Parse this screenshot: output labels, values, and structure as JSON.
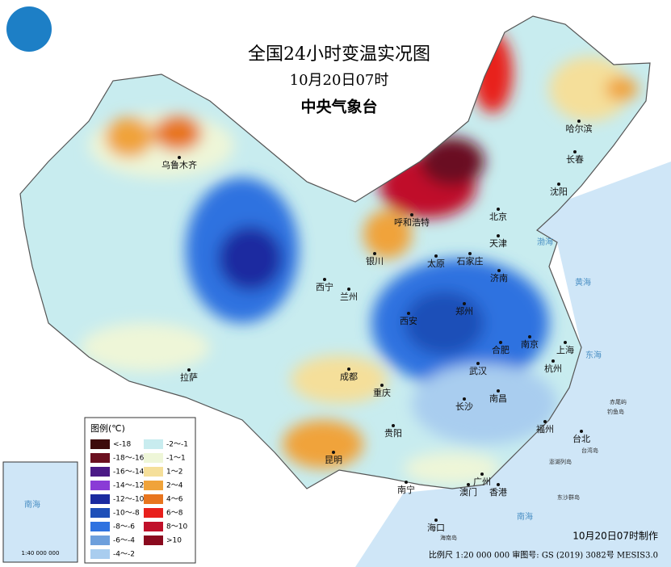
{
  "header": {
    "title": "全国24小时变温实况图",
    "time": "10月20日07时",
    "agency": "中央气象台"
  },
  "legend": {
    "title": "图例(℃)",
    "items": [
      {
        "label": "<-18",
        "color": "#3d0b0b"
      },
      {
        "label": "-18～-16",
        "color": "#6b1020"
      },
      {
        "label": "-16～-14",
        "color": "#4b1a86"
      },
      {
        "label": "-14～-12",
        "color": "#8a3bd6"
      },
      {
        "label": "-12～-10",
        "color": "#1a2aa0"
      },
      {
        "label": "-10～-8",
        "color": "#1e4fb8"
      },
      {
        "label": "-8～-6",
        "color": "#2f72e0"
      },
      {
        "label": "-6～-4",
        "color": "#6d9fdc"
      },
      {
        "label": "-4～-2",
        "color": "#a9cdef"
      },
      {
        "label": "-2～-1",
        "color": "#c8ecef"
      },
      {
        "label": "-1～1",
        "color": "#eef6d8"
      },
      {
        "label": "1～2",
        "color": "#f5df9a"
      },
      {
        "label": "2～4",
        "color": "#f0a33a"
      },
      {
        "label": "4～6",
        "color": "#e8751e"
      },
      {
        "label": "6～8",
        "color": "#e8201c"
      },
      {
        "label": "8～10",
        "color": "#c0102a"
      },
      {
        "label": ">10",
        "color": "#8a0a1e"
      }
    ]
  },
  "cities": [
    "乌鲁木齐",
    "哈尔滨",
    "长春",
    "沈阳",
    "呼和浩特",
    "北京",
    "天津",
    "银川",
    "太原",
    "石家庄",
    "西宁",
    "兰州",
    "济南",
    "郑州",
    "西安",
    "合肥",
    "南京",
    "上海",
    "武汉",
    "杭州",
    "拉萨",
    "成都",
    "重庆",
    "长沙",
    "南昌",
    "福州",
    "台北",
    "贵阳",
    "昆明",
    "广州",
    "澳门",
    "香港",
    "南宁",
    "海口"
  ],
  "seas": [
    "渤海",
    "黄海",
    "东海",
    "南海"
  ],
  "islands": [
    "赤尾屿",
    "钓鱼岛",
    "台湾岛",
    "澎湖列岛",
    "东沙群岛",
    "海南岛"
  ],
  "inset": {
    "sea": "南海",
    "scale": "1:40 000 000"
  },
  "footer": {
    "made": "10月20日07时制作",
    "scale": "比例尺 1:20 000 000 审图号: GS (2019) 3082号 MESIS3.0"
  }
}
